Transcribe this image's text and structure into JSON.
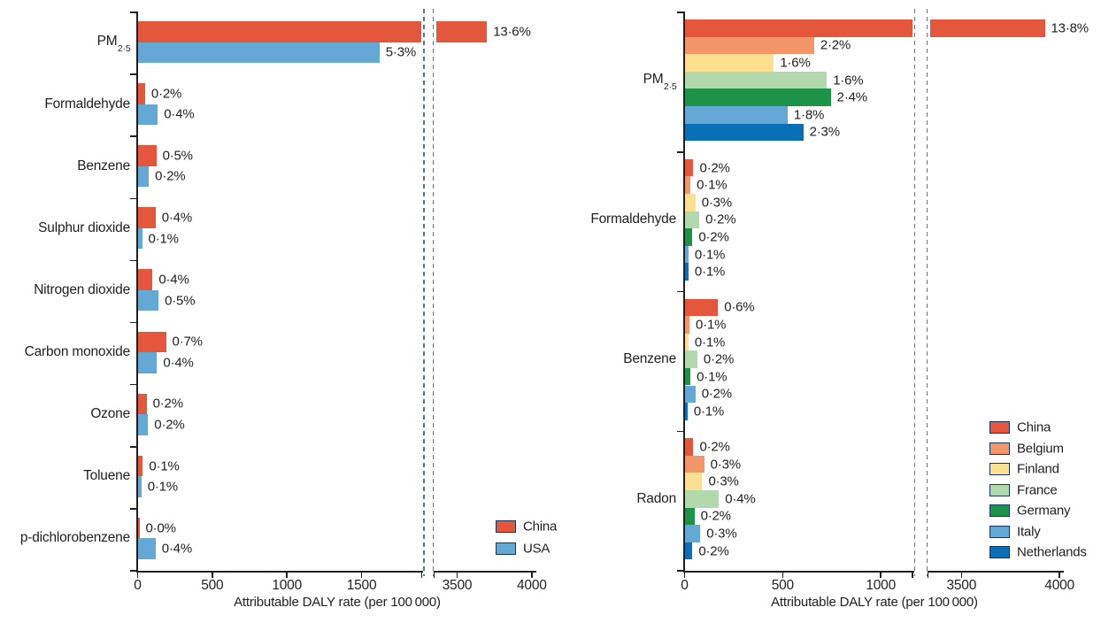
{
  "figure": {
    "background": "#FFFFFF",
    "text_color": "#231F20",
    "axis_color": "#231F20",
    "break_line_color": "#5F7487",
    "legend_border_color": "#17375E"
  },
  "chart_data": [
    {
      "type": "bar",
      "orientation": "horizontal",
      "panel": "left",
      "xlabel": "Attributable DALY rate (per 100 000)",
      "x_axis": {
        "ticks_before_break": [
          0,
          500,
          1000,
          1500
        ],
        "ticks_after_break": [
          3500,
          4000
        ],
        "broken_axis": true,
        "break_between_values": [
          1910,
          3340
        ],
        "xlim": [
          0,
          4200
        ]
      },
      "legend_position": "bottom-right-inside",
      "categories": [
        {
          "text": "PM",
          "sub": "2·5"
        },
        "Formaldehyde",
        "Benzene",
        "Sulphur dioxide",
        "Nitrogen dioxide",
        "Carbon monoxide",
        "Ozone",
        "Toluene",
        "p-dichlorobenzene"
      ],
      "series": [
        {
          "name": "China",
          "color": "#E5573C",
          "values": [
            3700,
            50,
            125,
            120,
            100,
            190,
            60,
            35,
            12
          ],
          "value_labels": [
            "13·6%",
            "0·2%",
            "0·5%",
            "0·4%",
            "0·4%",
            "0·7%",
            "0·2%",
            "0·1%",
            "0·0%"
          ]
        },
        {
          "name": "USA",
          "color": "#64A8D5",
          "values": [
            1620,
            135,
            75,
            30,
            140,
            130,
            70,
            25,
            120
          ],
          "value_labels": [
            "5·3%",
            "0·4%",
            "0·2%",
            "0·1%",
            "0·5%",
            "0·4%",
            "0·2%",
            "0·1%",
            "0·4%"
          ]
        }
      ]
    },
    {
      "type": "bar",
      "orientation": "horizontal",
      "panel": "right",
      "xlabel": "Attributable DALY rate (per 100 000)",
      "x_axis": {
        "ticks_before_break": [
          0,
          500,
          1000
        ],
        "ticks_after_break": [
          3500,
          4000
        ],
        "broken_axis": true,
        "break_between_values": [
          1170,
          3325
        ],
        "xlim": [
          0,
          4200
        ]
      },
      "legend_position": "middle-right-inside",
      "categories": [
        {
          "text": "PM",
          "sub": "2·5"
        },
        "Formaldehyde",
        "Benzene",
        "Radon"
      ],
      "series": [
        {
          "name": "China",
          "color": "#E5573C",
          "values": [
            3925,
            45,
            170,
            45
          ],
          "value_labels": [
            "13·8%",
            "0·2%",
            "0·6%",
            "0·2%"
          ]
        },
        {
          "name": "Belgium",
          "color": "#F29569",
          "values": [
            660,
            30,
            25,
            100
          ],
          "value_labels": [
            "2·2%",
            "0·1%",
            "0·1%",
            "0·3%"
          ]
        },
        {
          "name": "Finland",
          "color": "#FCE090",
          "values": [
            455,
            55,
            20,
            90
          ],
          "value_labels": [
            "1·6%",
            "0·3%",
            "0·1%",
            "0·3%"
          ]
        },
        {
          "name": "France",
          "color": "#B2D9AC",
          "values": [
            725,
            75,
            65,
            175
          ],
          "value_labels": [
            "1·6%",
            "0·2%",
            "0·2%",
            "0·4%"
          ]
        },
        {
          "name": "Germany",
          "color": "#1C9347",
          "values": [
            745,
            40,
            30,
            50
          ],
          "value_labels": [
            "2·4%",
            "0·2%",
            "0·1%",
            "0·2%"
          ]
        },
        {
          "name": "Italy",
          "color": "#64A8D5",
          "values": [
            525,
            20,
            55,
            80
          ],
          "value_labels": [
            "1·8%",
            "0·1%",
            "0·2%",
            "0·3%"
          ]
        },
        {
          "name": "Netherlands",
          "color": "#0B6FB8",
          "values": [
            605,
            20,
            15,
            40
          ],
          "value_labels": [
            "2·3%",
            "0·1%",
            "0·1%",
            "0·2%"
          ]
        }
      ]
    }
  ]
}
